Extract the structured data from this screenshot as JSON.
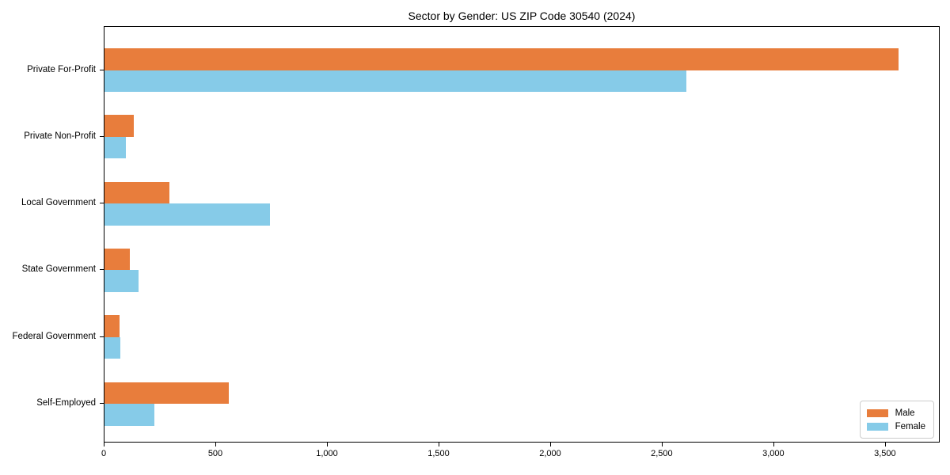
{
  "chart_data": {
    "type": "bar",
    "orientation": "horizontal",
    "title": "Sector by Gender: US ZIP Code 30540 (2024)",
    "categories": [
      "Private For-Profit",
      "Private Non-Profit",
      "Local Government",
      "State Government",
      "Federal Government",
      "Self-Employed"
    ],
    "series": [
      {
        "name": "Male",
        "color": "#e87d3c",
        "values": [
          3557,
          130,
          290,
          112,
          66,
          557
        ]
      },
      {
        "name": "Female",
        "color": "#86cbe8",
        "values": [
          2605,
          97,
          741,
          151,
          70,
          223
        ]
      }
    ],
    "xlabel": "",
    "ylabel": "",
    "xlim": [
      0,
      3745
    ],
    "xticks": [
      0,
      500,
      1000,
      1500,
      2000,
      2500,
      3000,
      3500
    ],
    "xtick_labels": [
      "0",
      "500",
      "1,000",
      "1,500",
      "2,000",
      "2,500",
      "3,000",
      "3,500"
    ],
    "grid": false,
    "legend_position": "lower right",
    "plot_border_color": "#000000",
    "background_color": "#ffffff"
  }
}
